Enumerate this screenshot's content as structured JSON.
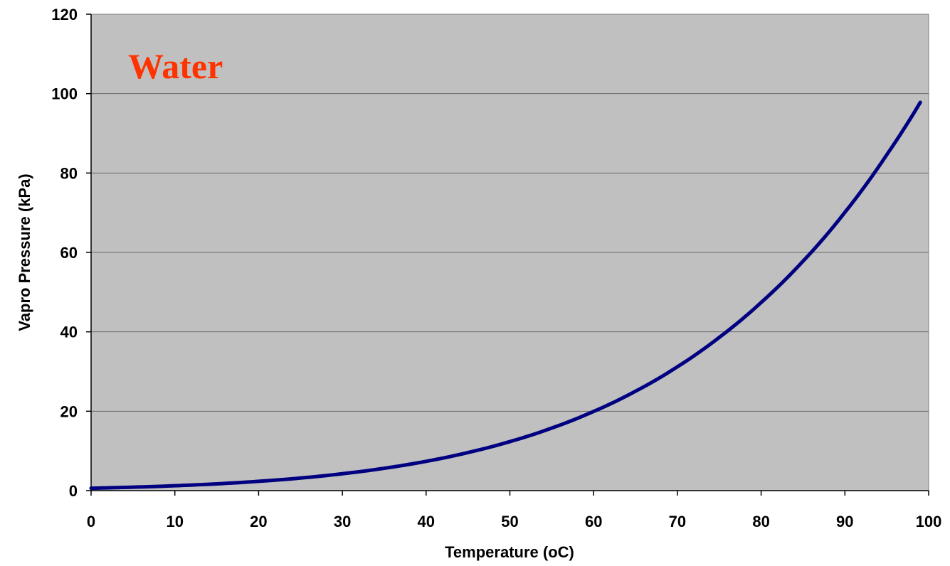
{
  "chart_data": {
    "type": "line",
    "xlabel": "Temperature (oC)",
    "ylabel": "Vapro Pressure (kPa)",
    "xlim": [
      0,
      100
    ],
    "ylim": [
      0,
      120
    ],
    "x_ticks": [
      "0",
      "10",
      "20",
      "30",
      "40",
      "50",
      "60",
      "70",
      "80",
      "90",
      "100"
    ],
    "y_ticks": [
      "0",
      "20",
      "40",
      "60",
      "80",
      "100",
      "120"
    ],
    "grid": "horizontal",
    "background_color": "#c0c0c0",
    "line_color": "#000080",
    "annotation": {
      "text": "Water",
      "color": "#ff3300"
    },
    "series": [
      {
        "x": [
          0,
          5,
          10,
          15,
          20,
          25,
          30,
          35,
          40,
          45,
          50,
          55,
          60,
          65,
          70,
          75,
          80,
          85,
          90,
          95,
          99
        ],
        "y": [
          0.61,
          0.87,
          1.23,
          1.71,
          2.34,
          3.17,
          4.25,
          5.63,
          7.38,
          9.59,
          12.35,
          15.76,
          19.95,
          25.04,
          31.2,
          38.6,
          47.4,
          57.8,
          70.1,
          84.6,
          97.8
        ]
      }
    ]
  }
}
